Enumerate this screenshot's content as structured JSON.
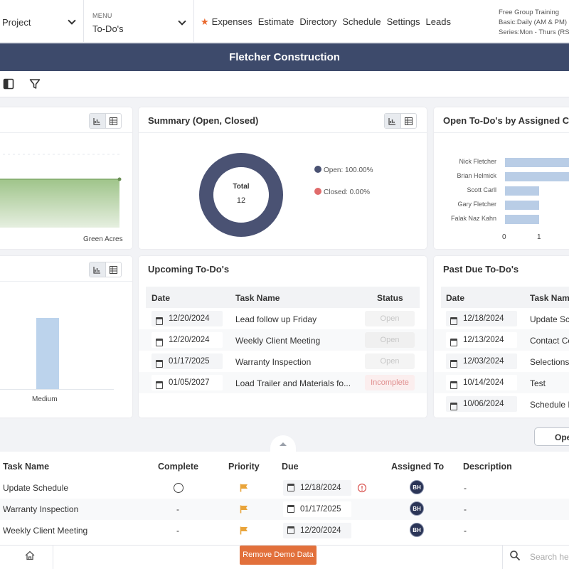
{
  "nav": {
    "project_label": "Project",
    "menu_small": "MENU",
    "menu_value": "To-Do's",
    "links": [
      "Expenses",
      "Estimate",
      "Directory",
      "Schedule",
      "Settings",
      "Leads"
    ],
    "promo_lines": [
      "Free Group Training",
      "Basic:Daily (AM & PM)",
      "Series:Mon - Thurs (RS"
    ]
  },
  "banner": {
    "title": "Fletcher Construction"
  },
  "cards": {
    "left_top": {
      "label": "Green Acres"
    },
    "summary": {
      "title": "Summary (Open, Closed)",
      "total_label": "Total",
      "total_value": "12",
      "legend": [
        {
          "label": "Open: 100.00%",
          "color": "#4a5273"
        },
        {
          "label": "Closed: 0.00%",
          "color": "#e06b6b"
        }
      ]
    },
    "assigned": {
      "title": "Open To-Do's by Assigned Co",
      "names": [
        "Nick Fletcher",
        "Brian Helmick",
        "Scott Carll",
        "Gary Fletcher",
        "Falak Naz Kahn"
      ],
      "ticks": [
        "0",
        "1"
      ]
    },
    "left_mid": {
      "label": "Medium"
    },
    "upcoming": {
      "title": "Upcoming To-Do's",
      "headers": {
        "date": "Date",
        "task": "Task Name",
        "status": "Status"
      },
      "rows": [
        {
          "date": "12/20/2024",
          "task": "Lead follow up Friday",
          "status": "Open"
        },
        {
          "date": "12/20/2024",
          "task": "Weekly Client Meeting",
          "status": "Open"
        },
        {
          "date": "01/17/2025",
          "task": "Warranty Inspection",
          "status": "Open"
        },
        {
          "date": "01/05/2027",
          "task": "Load Trailer and Materials fo...",
          "status": "Incomplete"
        }
      ]
    },
    "pastdue": {
      "title": "Past Due To-Do's",
      "headers": {
        "date": "Date",
        "task": "Task Nam"
      },
      "rows": [
        {
          "date": "12/18/2024",
          "task": "Update Sc"
        },
        {
          "date": "12/13/2024",
          "task": "Contact Co"
        },
        {
          "date": "12/03/2024",
          "task": "Selections"
        },
        {
          "date": "10/14/2024",
          "task": "Test"
        },
        {
          "date": "10/06/2024",
          "task": "Schedule F"
        }
      ]
    }
  },
  "open_button": "Ope",
  "list": {
    "headers": {
      "task": "Task Name",
      "complete": "Complete",
      "priority": "Priority",
      "due": "Due",
      "assigned": "Assigned To",
      "description": "Description"
    },
    "rows": [
      {
        "task": "Update Schedule",
        "complete": "",
        "due": "12/18/2024",
        "assigned": "BH",
        "description": "-"
      },
      {
        "task": "Warranty Inspection",
        "complete": "-",
        "due": "01/17/2025",
        "assigned": "BH",
        "description": "-"
      },
      {
        "task": "Weekly Client Meeting",
        "complete": "-",
        "due": "12/20/2024",
        "assigned": "BH",
        "description": "-"
      }
    ]
  },
  "footer": {
    "demo_button": "Remove Demo Data",
    "search_placeholder": "Search he"
  }
}
